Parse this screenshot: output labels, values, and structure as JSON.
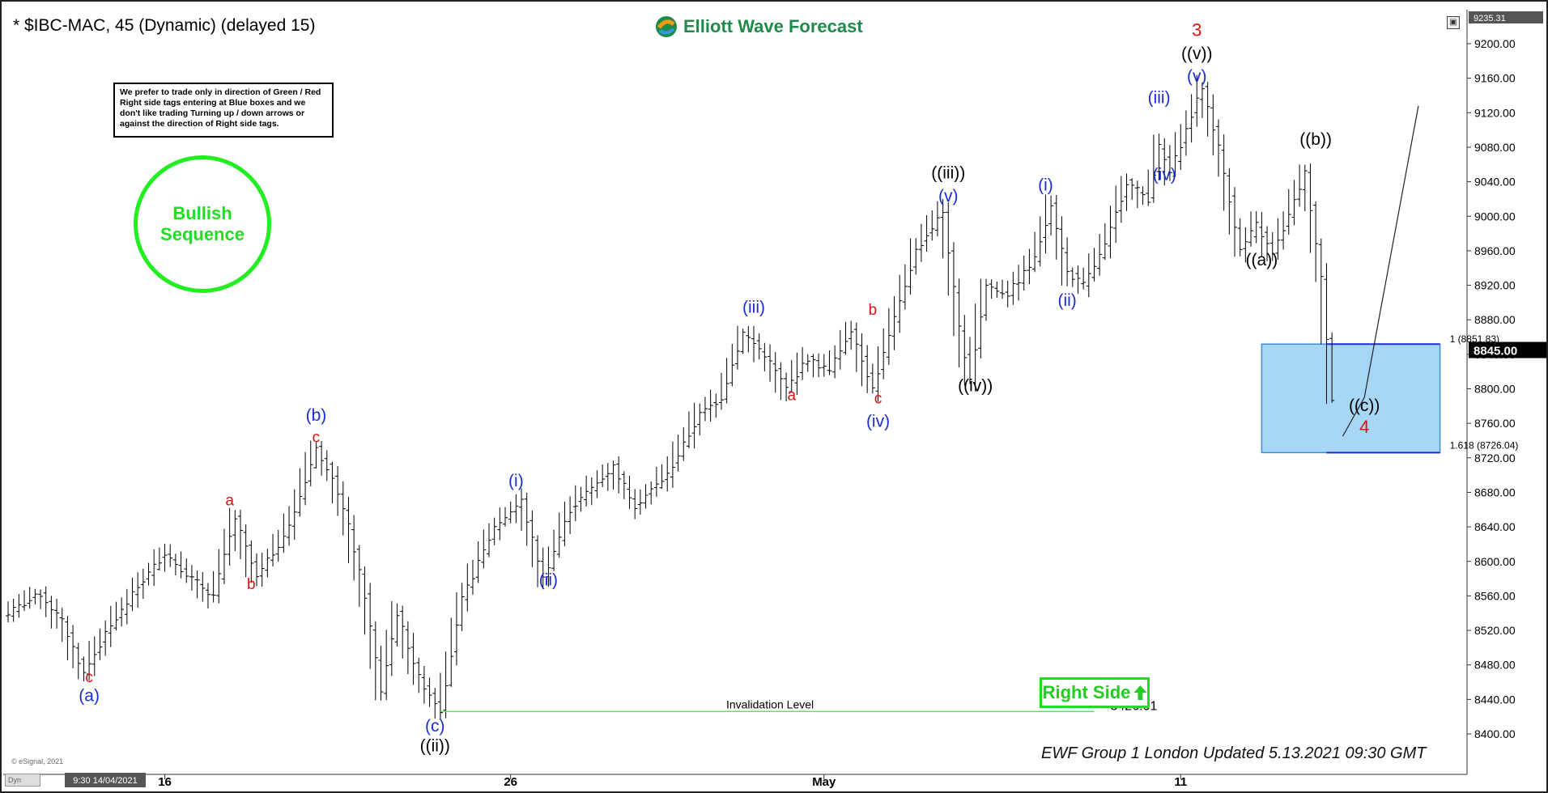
{
  "header": {
    "symbol_title": "* $IBC-MAC, 45 (Dynamic) (delayed 15)",
    "logo_text": "Elliott Wave Forecast"
  },
  "note": {
    "text": "We prefer to trade only in direction of Green / Red Right side tags entering at Blue boxes and we don't like trading Turning up / down arrows or against the direction of Right side tags."
  },
  "badge": {
    "line1": "Bullish",
    "line2": "Sequence"
  },
  "right_side_tag": "Right Side",
  "footer": {
    "updated_text": "EWF Group 1 London Updated 5.13.2021 09:30 GMT",
    "esignal": "© eSignal, 2021",
    "dyn_label": "Dyn",
    "cursor_date": "9:30 14/04/2021"
  },
  "colors": {
    "bar": "#000000",
    "wave_blue": "#1a2fd1",
    "wave_red": "#dd1111",
    "wave_black": "#000000",
    "green": "#22dd22",
    "blue_box": "#a8d6f5",
    "invalidation_line": "#44dd44"
  },
  "chart_data": {
    "type": "ohlc",
    "y_axis": {
      "ticks": [
        8400,
        8440,
        8480,
        8520,
        8560,
        8600,
        8640,
        8680,
        8720,
        8760,
        8800,
        8840,
        8880,
        8920,
        8960,
        9000,
        9040,
        9080,
        9120,
        9160,
        9200
      ],
      "tick_labels": [
        "8400.00",
        "8440.00",
        "8480.00",
        "8520.00",
        "8560.00",
        "8600.00",
        "8640.00",
        "8680.00",
        "8720.00",
        "8760.00",
        "8800.00",
        "8840.00",
        "8880.00",
        "8920.00",
        "8960.00",
        "9000.00",
        "9040.00",
        "9080.00",
        "9120.00",
        "9160.00",
        "9200.00"
      ],
      "top_label": "9235.31",
      "current_price_label": "8845.00",
      "current_price": 8845
    },
    "x_axis": {
      "tick_labels": [
        "16",
        "26",
        "May",
        "11"
      ],
      "tick_index": [
        29,
        93,
        151,
        217
      ]
    },
    "invalidation": {
      "label": "Invalidation Level",
      "value_label": "8426.01",
      "value": 8426.01
    },
    "blue_box": {
      "fib_top_label": "1 (8851.83)",
      "fib_bottom_label": "1.618 (8726.04)",
      "top": 8851.83,
      "bottom": 8726.04,
      "index_start": 232,
      "index_end": 265
    },
    "projection": [
      [
        247,
        8745
      ],
      [
        251,
        8790
      ],
      [
        261,
        9128
      ]
    ],
    "price_path": [
      [
        0,
        8540
      ],
      [
        6,
        8562
      ],
      [
        10,
        8530
      ],
      [
        14,
        8470
      ],
      [
        18,
        8515
      ],
      [
        24,
        8570
      ],
      [
        29,
        8610
      ],
      [
        34,
        8580
      ],
      [
        38,
        8560
      ],
      [
        42,
        8650
      ],
      [
        46,
        8580
      ],
      [
        52,
        8640
      ],
      [
        57,
        8730
      ],
      [
        60,
        8700
      ],
      [
        63,
        8640
      ],
      [
        66,
        8560
      ],
      [
        69,
        8450
      ],
      [
        72,
        8540
      ],
      [
        76,
        8465
      ],
      [
        80,
        8428
      ],
      [
        84,
        8555
      ],
      [
        90,
        8640
      ],
      [
        95,
        8670
      ],
      [
        99,
        8580
      ],
      [
        104,
        8660
      ],
      [
        112,
        8710
      ],
      [
        116,
        8665
      ],
      [
        122,
        8700
      ],
      [
        128,
        8770
      ],
      [
        132,
        8790
      ],
      [
        136,
        8865
      ],
      [
        140,
        8840
      ],
      [
        144,
        8800
      ],
      [
        148,
        8835
      ],
      [
        152,
        8820
      ],
      [
        156,
        8870
      ],
      [
        160,
        8800
      ],
      [
        164,
        8880
      ],
      [
        168,
        8960
      ],
      [
        173,
        9005
      ],
      [
        176,
        8870
      ],
      [
        178,
        8810
      ],
      [
        181,
        8920
      ],
      [
        185,
        8910
      ],
      [
        190,
        8950
      ],
      [
        193,
        9015
      ],
      [
        196,
        8935
      ],
      [
        199,
        8920
      ],
      [
        203,
        8965
      ],
      [
        207,
        9040
      ],
      [
        211,
        9020
      ],
      [
        213,
        9080
      ],
      [
        215,
        9050
      ],
      [
        218,
        9100
      ],
      [
        221,
        9150
      ],
      [
        224,
        9080
      ],
      [
        228,
        8960
      ],
      [
        231,
        8990
      ],
      [
        234,
        8955
      ],
      [
        237,
        9000
      ],
      [
        240,
        9050
      ],
      [
        243,
        8930
      ],
      [
        245,
        8790
      ]
    ],
    "wave_labels": [
      {
        "text": "c",
        "idx": 15,
        "price": 8460,
        "color": "red"
      },
      {
        "text": "(a)",
        "idx": 15,
        "price": 8438,
        "color": "blue"
      },
      {
        "text": "a",
        "idx": 41,
        "price": 8665,
        "color": "red"
      },
      {
        "text": "b",
        "idx": 45,
        "price": 8568,
        "color": "red"
      },
      {
        "text": "(b)",
        "idx": 57,
        "price": 8763,
        "color": "blue"
      },
      {
        "text": "c",
        "idx": 57,
        "price": 8738,
        "color": "red"
      },
      {
        "text": "(c)",
        "idx": 79,
        "price": 8403,
        "color": "blue"
      },
      {
        "text": "((ii))",
        "idx": 79,
        "price": 8380,
        "color": "black"
      },
      {
        "text": "(i)",
        "idx": 94,
        "price": 8687,
        "color": "blue"
      },
      {
        "text": "(ii)",
        "idx": 100,
        "price": 8572,
        "color": "blue"
      },
      {
        "text": "(iii)",
        "idx": 138,
        "price": 8888,
        "color": "blue"
      },
      {
        "text": "a",
        "idx": 145,
        "price": 8787,
        "color": "red"
      },
      {
        "text": "b",
        "idx": 160,
        "price": 8886,
        "color": "red"
      },
      {
        "text": "c",
        "idx": 161,
        "price": 8783,
        "color": "red"
      },
      {
        "text": "(iv)",
        "idx": 161,
        "price": 8756,
        "color": "blue"
      },
      {
        "text": "((iii))",
        "idx": 174,
        "price": 9044,
        "color": "black"
      },
      {
        "text": "(v)",
        "idx": 174,
        "price": 9017,
        "color": "blue"
      },
      {
        "text": "((iv))",
        "idx": 179,
        "price": 8797,
        "color": "black"
      },
      {
        "text": "(i)",
        "idx": 192,
        "price": 9030,
        "color": "blue"
      },
      {
        "text": "(ii)",
        "idx": 196,
        "price": 8896,
        "color": "blue"
      },
      {
        "text": "(iii)",
        "idx": 213,
        "price": 9131,
        "color": "blue"
      },
      {
        "text": "(iv)",
        "idx": 214,
        "price": 9042,
        "color": "blue"
      },
      {
        "text": "3",
        "idx": 220,
        "price": 9209,
        "color": "red"
      },
      {
        "text": "((v))",
        "idx": 220,
        "price": 9182,
        "color": "black"
      },
      {
        "text": "(v)",
        "idx": 220,
        "price": 9156,
        "color": "blue"
      },
      {
        "text": "((b))",
        "idx": 242,
        "price": 9083,
        "color": "black"
      },
      {
        "text": "((a))",
        "idx": 232,
        "price": 8943,
        "color": "black"
      },
      {
        "text": "((c))",
        "idx": 251,
        "price": 8774,
        "color": "black"
      },
      {
        "text": "4",
        "idx": 251,
        "price": 8749,
        "color": "red"
      }
    ]
  }
}
